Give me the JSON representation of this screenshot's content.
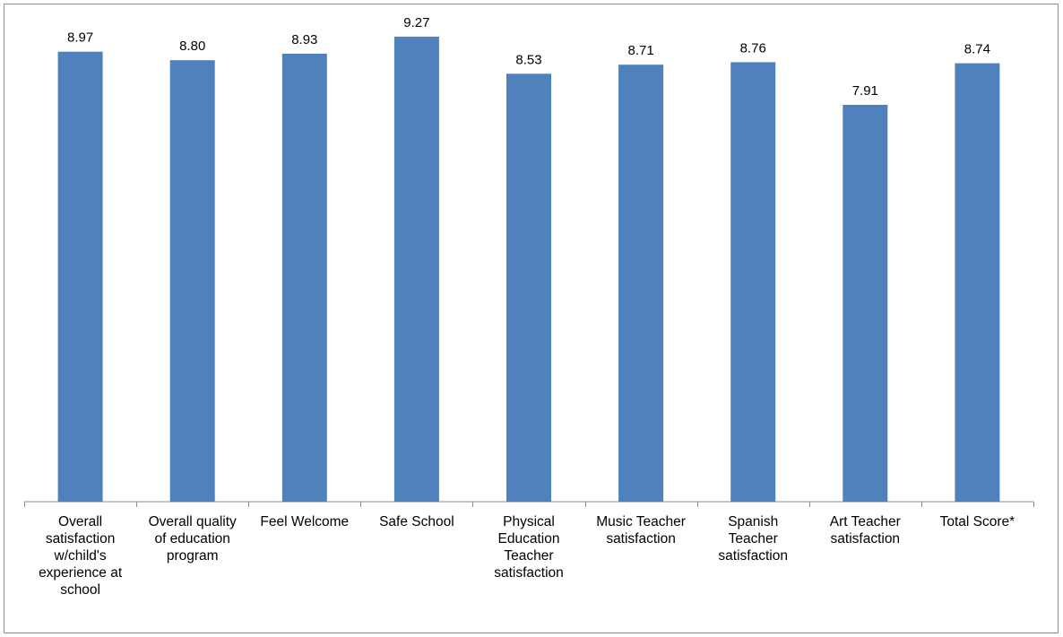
{
  "chart_data": {
    "type": "bar",
    "categories": [
      [
        "Overall",
        "satisfaction",
        "w/child's",
        "experience at",
        "school"
      ],
      [
        "Overall quality",
        "of education",
        "program"
      ],
      [
        "Feel Welcome"
      ],
      [
        "Safe School"
      ],
      [
        "Physical",
        "Education",
        "Teacher",
        "satisfaction"
      ],
      [
        "Music Teacher",
        "satisfaction"
      ],
      [
        "Spanish",
        "Teacher",
        "satisfaction"
      ],
      [
        "Art Teacher",
        "satisfaction"
      ],
      [
        "Total Score*"
      ]
    ],
    "values": [
      8.97,
      8.8,
      8.93,
      9.27,
      8.53,
      8.71,
      8.76,
      7.91,
      8.74
    ],
    "value_labels": [
      "8.97",
      "8.80",
      "8.93",
      "9.27",
      "8.53",
      "8.71",
      "8.76",
      "7.91",
      "8.74"
    ],
    "title": "",
    "xlabel": "",
    "ylabel": "",
    "ylim": [
      0,
      10
    ],
    "grid": false,
    "legend": "none",
    "bar_color": "#4f81bd",
    "axis_color": "#8c8c8c"
  }
}
